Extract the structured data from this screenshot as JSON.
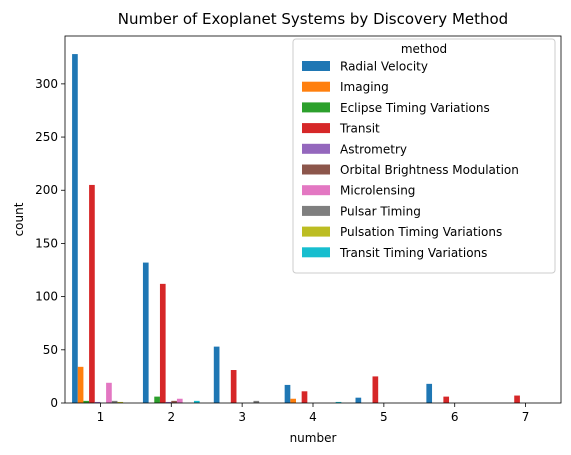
{
  "chart_data": {
    "type": "bar",
    "title": "Number of Exoplanet Systems by Discovery Method",
    "xlabel": "number",
    "ylabel": "count",
    "categories": [
      "1",
      "2",
      "3",
      "4",
      "5",
      "6",
      "7"
    ],
    "ylim": [
      0,
      345
    ],
    "yticks": [
      0,
      50,
      100,
      150,
      200,
      250,
      300
    ],
    "legend_title": "method",
    "legend_position": "upper-right",
    "series": [
      {
        "name": "Radial Velocity",
        "color": "#1f77b4",
        "values": [
          328,
          132,
          53,
          17,
          5,
          18,
          0
        ]
      },
      {
        "name": "Imaging",
        "color": "#ff7f0e",
        "values": [
          34,
          0,
          0,
          4,
          0,
          0,
          0
        ]
      },
      {
        "name": "Eclipse Timing Variations",
        "color": "#2ca02c",
        "values": [
          2,
          6,
          0,
          0,
          0,
          0,
          0
        ]
      },
      {
        "name": "Transit",
        "color": "#d62728",
        "values": [
          205,
          112,
          31,
          11,
          25,
          6,
          7
        ]
      },
      {
        "name": "Astrometry",
        "color": "#9467bd",
        "values": [
          1,
          1,
          0,
          0,
          0,
          0,
          0
        ]
      },
      {
        "name": "Orbital Brightness Modulation",
        "color": "#8c564b",
        "values": [
          0,
          2,
          0,
          0,
          0,
          0,
          0
        ]
      },
      {
        "name": "Microlensing",
        "color": "#e377c2",
        "values": [
          19,
          4,
          0,
          0,
          0,
          0,
          0
        ]
      },
      {
        "name": "Pulsar Timing",
        "color": "#7f7f7f",
        "values": [
          2,
          0,
          2,
          0,
          0,
          0,
          0
        ]
      },
      {
        "name": "Pulsation Timing Variations",
        "color": "#bcbd22",
        "values": [
          1,
          0,
          0,
          0,
          0,
          0,
          0
        ]
      },
      {
        "name": "Transit Timing Variations",
        "color": "#17becf",
        "values": [
          0,
          2,
          0,
          1,
          0,
          0,
          0
        ]
      }
    ]
  }
}
